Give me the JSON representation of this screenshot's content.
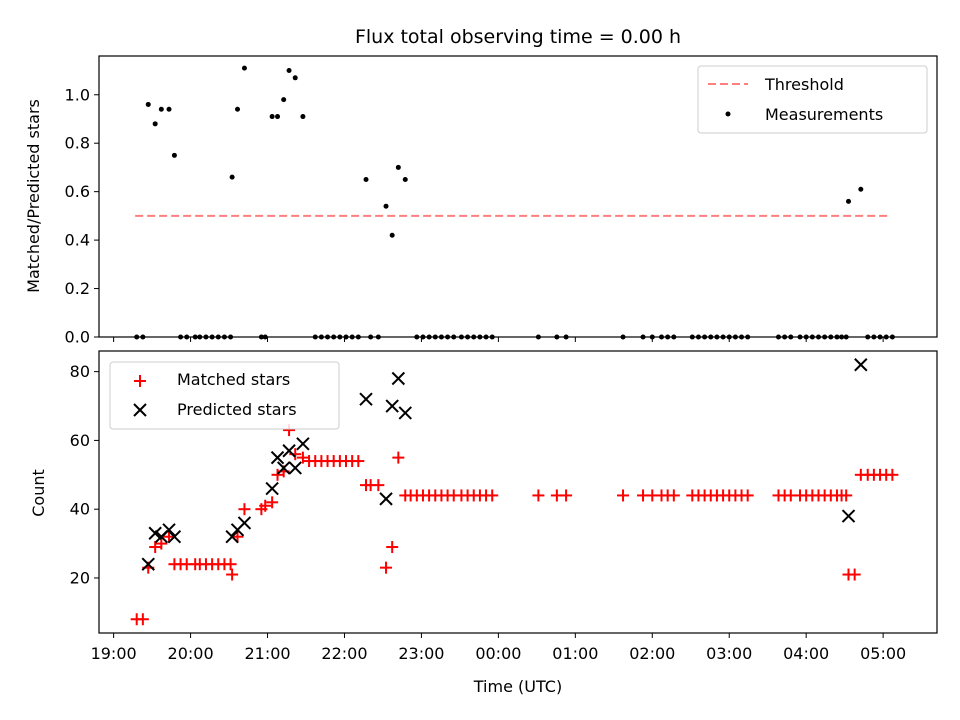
{
  "chart_data": [
    {
      "type": "scatter",
      "panel": "top",
      "title": "Flux total observing time = 0.00 h",
      "ylabel": "Matched/Predicted stars",
      "x_unit": "hours since 19:00 UTC",
      "xlim": [
        -0.19,
        10.7
      ],
      "ylim": [
        0.0,
        1.16
      ],
      "yticks": [
        0.0,
        0.2,
        0.4,
        0.6,
        0.8,
        1.0
      ],
      "ytick_labels": [
        "0.0",
        "0.2",
        "0.4",
        "0.6",
        "0.8",
        "1.0"
      ],
      "xticks": [
        0,
        1,
        2,
        3,
        4,
        5,
        6,
        7,
        8,
        9,
        10
      ],
      "grid": false,
      "legend_position": "top-right",
      "legend": [
        {
          "label": "Threshold",
          "marker": "dashed-line",
          "color": "#ff7f7f"
        },
        {
          "label": "Measurements",
          "marker": "dot",
          "color": "#000000"
        }
      ],
      "threshold": {
        "name": "Threshold",
        "y": 0.5,
        "x_start": 0.28,
        "x_end": 10.1,
        "color": "#ff7f7f"
      },
      "series": [
        {
          "name": "Measurements",
          "color": "#000000",
          "points": [
            [
              0.3,
              0.0
            ],
            [
              0.38,
              0.0
            ],
            [
              0.45,
              0.96
            ],
            [
              0.54,
              0.88
            ],
            [
              0.62,
              0.94
            ],
            [
              0.72,
              0.94
            ],
            [
              0.79,
              0.75
            ],
            [
              0.87,
              0.0
            ],
            [
              0.95,
              0.0
            ],
            [
              1.06,
              0.0
            ],
            [
              1.12,
              0.0
            ],
            [
              1.2,
              0.0
            ],
            [
              1.28,
              0.0
            ],
            [
              1.36,
              0.0
            ],
            [
              1.44,
              0.0
            ],
            [
              1.52,
              0.0
            ],
            [
              1.54,
              0.66
            ],
            [
              1.61,
              0.94
            ],
            [
              1.7,
              1.11
            ],
            [
              1.92,
              0.0
            ],
            [
              1.97,
              0.0
            ],
            [
              2.06,
              0.91
            ],
            [
              2.13,
              0.91
            ],
            [
              2.21,
              0.98
            ],
            [
              2.28,
              1.1
            ],
            [
              2.36,
              1.07
            ],
            [
              2.46,
              0.91
            ],
            [
              2.62,
              0.0
            ],
            [
              2.7,
              0.0
            ],
            [
              2.78,
              0.0
            ],
            [
              2.86,
              0.0
            ],
            [
              2.94,
              0.0
            ],
            [
              3.02,
              0.0
            ],
            [
              3.1,
              0.0
            ],
            [
              3.18,
              0.0
            ],
            [
              3.28,
              0.65
            ],
            [
              3.34,
              0.0
            ],
            [
              3.44,
              0.0
            ],
            [
              3.54,
              0.54
            ],
            [
              3.62,
              0.42
            ],
            [
              3.7,
              0.7
            ],
            [
              3.79,
              0.65
            ],
            [
              3.94,
              0.0
            ],
            [
              4.02,
              0.0
            ],
            [
              4.1,
              0.0
            ],
            [
              4.18,
              0.0
            ],
            [
              4.26,
              0.0
            ],
            [
              4.34,
              0.0
            ],
            [
              4.42,
              0.0
            ],
            [
              4.52,
              0.0
            ],
            [
              4.6,
              0.0
            ],
            [
              4.68,
              0.0
            ],
            [
              4.76,
              0.0
            ],
            [
              4.84,
              0.0
            ],
            [
              4.92,
              0.0
            ],
            [
              5.52,
              0.0
            ],
            [
              5.76,
              0.0
            ],
            [
              5.88,
              0.0
            ],
            [
              6.62,
              0.0
            ],
            [
              6.88,
              0.0
            ],
            [
              7.0,
              0.0
            ],
            [
              7.12,
              0.0
            ],
            [
              7.2,
              0.0
            ],
            [
              7.28,
              0.0
            ],
            [
              7.52,
              0.0
            ],
            [
              7.6,
              0.0
            ],
            [
              7.68,
              0.0
            ],
            [
              7.76,
              0.0
            ],
            [
              7.84,
              0.0
            ],
            [
              7.92,
              0.0
            ],
            [
              8.0,
              0.0
            ],
            [
              8.08,
              0.0
            ],
            [
              8.16,
              0.0
            ],
            [
              8.24,
              0.0
            ],
            [
              8.64,
              0.0
            ],
            [
              8.72,
              0.0
            ],
            [
              8.8,
              0.0
            ],
            [
              8.92,
              0.0
            ],
            [
              9.0,
              0.0
            ],
            [
              9.08,
              0.0
            ],
            [
              9.16,
              0.0
            ],
            [
              9.24,
              0.0
            ],
            [
              9.32,
              0.0
            ],
            [
              9.4,
              0.0
            ],
            [
              9.46,
              0.0
            ],
            [
              9.52,
              0.0
            ],
            [
              9.55,
              0.56
            ],
            [
              9.71,
              0.61
            ],
            [
              9.8,
              0.0
            ],
            [
              9.88,
              0.0
            ],
            [
              9.96,
              0.0
            ],
            [
              10.04,
              0.0
            ],
            [
              10.12,
              0.0
            ]
          ]
        }
      ]
    },
    {
      "type": "scatter",
      "panel": "bottom",
      "xlabel": "Time (UTC)",
      "ylabel": "Count",
      "x_unit": "hours since 19:00 UTC",
      "xlim": [
        -0.19,
        10.7
      ],
      "ylim": [
        4,
        86
      ],
      "yticks": [
        20,
        40,
        60,
        80
      ],
      "ytick_labels": [
        "20",
        "40",
        "60",
        "80"
      ],
      "xticks": [
        0,
        1,
        2,
        3,
        4,
        5,
        6,
        7,
        8,
        9,
        10
      ],
      "xtick_labels": [
        "19:00",
        "20:00",
        "21:00",
        "22:00",
        "23:00",
        "00:00",
        "01:00",
        "02:00",
        "03:00",
        "04:00",
        "05:00"
      ],
      "grid": false,
      "legend_position": "top-left",
      "legend": [
        {
          "label": "Matched stars",
          "marker": "plus",
          "color": "#ff0000"
        },
        {
          "label": "Predicted stars",
          "marker": "x",
          "color": "#000000"
        }
      ],
      "series": [
        {
          "name": "Matched stars",
          "marker": "plus",
          "color": "#ff0000",
          "points": [
            [
              0.3,
              8
            ],
            [
              0.38,
              8
            ],
            [
              0.45,
              23
            ],
            [
              0.54,
              29
            ],
            [
              0.62,
              30
            ],
            [
              0.72,
              32
            ],
            [
              0.79,
              24
            ],
            [
              0.87,
              24
            ],
            [
              0.95,
              24
            ],
            [
              1.06,
              24
            ],
            [
              1.12,
              24
            ],
            [
              1.2,
              24
            ],
            [
              1.28,
              24
            ],
            [
              1.36,
              24
            ],
            [
              1.44,
              24
            ],
            [
              1.52,
              24
            ],
            [
              1.54,
              21
            ],
            [
              1.61,
              32
            ],
            [
              1.7,
              40
            ],
            [
              1.92,
              40
            ],
            [
              1.97,
              41
            ],
            [
              2.06,
              42
            ],
            [
              2.13,
              50
            ],
            [
              2.21,
              51
            ],
            [
              2.28,
              63
            ],
            [
              2.36,
              56
            ],
            [
              2.46,
              55
            ],
            [
              2.54,
              54
            ],
            [
              2.62,
              54
            ],
            [
              2.7,
              54
            ],
            [
              2.78,
              54
            ],
            [
              2.86,
              54
            ],
            [
              2.94,
              54
            ],
            [
              3.02,
              54
            ],
            [
              3.1,
              54
            ],
            [
              3.18,
              54
            ],
            [
              3.28,
              47
            ],
            [
              3.34,
              47
            ],
            [
              3.44,
              47
            ],
            [
              3.54,
              23
            ],
            [
              3.62,
              29
            ],
            [
              3.7,
              55
            ],
            [
              3.79,
              44
            ],
            [
              3.86,
              44
            ],
            [
              3.94,
              44
            ],
            [
              4.02,
              44
            ],
            [
              4.1,
              44
            ],
            [
              4.18,
              44
            ],
            [
              4.26,
              44
            ],
            [
              4.34,
              44
            ],
            [
              4.42,
              44
            ],
            [
              4.52,
              44
            ],
            [
              4.6,
              44
            ],
            [
              4.68,
              44
            ],
            [
              4.76,
              44
            ],
            [
              4.84,
              44
            ],
            [
              4.92,
              44
            ],
            [
              5.52,
              44
            ],
            [
              5.76,
              44
            ],
            [
              5.88,
              44
            ],
            [
              6.62,
              44
            ],
            [
              6.88,
              44
            ],
            [
              7.0,
              44
            ],
            [
              7.12,
              44
            ],
            [
              7.2,
              44
            ],
            [
              7.28,
              44
            ],
            [
              7.52,
              44
            ],
            [
              7.6,
              44
            ],
            [
              7.68,
              44
            ],
            [
              7.76,
              44
            ],
            [
              7.84,
              44
            ],
            [
              7.92,
              44
            ],
            [
              8.0,
              44
            ],
            [
              8.08,
              44
            ],
            [
              8.16,
              44
            ],
            [
              8.24,
              44
            ],
            [
              8.64,
              44
            ],
            [
              8.72,
              44
            ],
            [
              8.8,
              44
            ],
            [
              8.92,
              44
            ],
            [
              9.0,
              44
            ],
            [
              9.08,
              44
            ],
            [
              9.16,
              44
            ],
            [
              9.24,
              44
            ],
            [
              9.32,
              44
            ],
            [
              9.4,
              44
            ],
            [
              9.46,
              44
            ],
            [
              9.52,
              44
            ],
            [
              9.55,
              21
            ],
            [
              9.63,
              21
            ],
            [
              9.71,
              50
            ],
            [
              9.8,
              50
            ],
            [
              9.88,
              50
            ],
            [
              9.96,
              50
            ],
            [
              10.04,
              50
            ],
            [
              10.12,
              50
            ]
          ]
        },
        {
          "name": "Predicted stars",
          "marker": "x",
          "color": "#000000",
          "points": [
            [
              0.45,
              24
            ],
            [
              0.54,
              33
            ],
            [
              0.62,
              32
            ],
            [
              0.72,
              34
            ],
            [
              0.79,
              32
            ],
            [
              1.54,
              32
            ],
            [
              1.61,
              34
            ],
            [
              1.7,
              36
            ],
            [
              2.06,
              46
            ],
            [
              2.13,
              55
            ],
            [
              2.21,
              52
            ],
            [
              2.28,
              57
            ],
            [
              2.36,
              52
            ],
            [
              2.46,
              59
            ],
            [
              3.28,
              72
            ],
            [
              3.54,
              43
            ],
            [
              3.62,
              70
            ],
            [
              3.7,
              78
            ],
            [
              3.79,
              68
            ],
            [
              9.55,
              38
            ],
            [
              9.71,
              82
            ]
          ]
        }
      ]
    }
  ]
}
